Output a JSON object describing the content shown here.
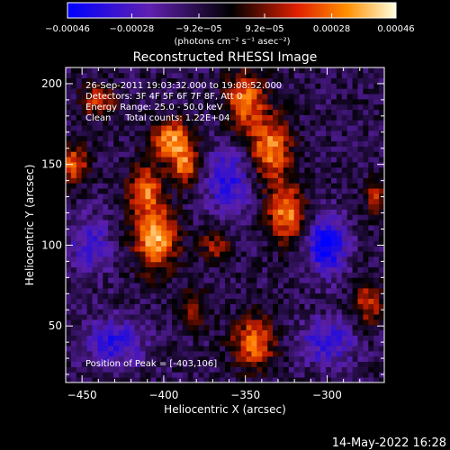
{
  "chart_data": {
    "type": "heatmap",
    "title": "Reconstructed RHESSI Image",
    "xlabel": "Heliocentric X (arcsec)",
    "ylabel": "Heliocentric Y (arcsec)",
    "xlim": [
      -460,
      -265
    ],
    "ylim": [
      15,
      210
    ],
    "x_ticks": [
      -450,
      -400,
      -350,
      -300
    ],
    "x_tick_labels": [
      "−450",
      "−400",
      "−350",
      "−300"
    ],
    "y_ticks": [
      50,
      100,
      150,
      200
    ],
    "y_tick_labels": [
      "50",
      "100",
      "150",
      "200"
    ],
    "colorbar": {
      "range": [
        -0.00046,
        0.00046
      ],
      "ticks": [
        -0.00046,
        -0.00028,
        -9.2e-05,
        9.2e-05,
        0.00028,
        0.00046
      ],
      "tick_labels": [
        "−0.00046",
        "−0.00028",
        "−9.2e−05",
        "9.2e−05",
        "0.00028",
        "0.00046"
      ],
      "unit_text": "(photons cm⁻² s⁻¹ asec⁻²)"
    },
    "annotations": [
      "26-Sep-2011 19:03:32.000 to 19:08:52.000",
      "Detectors: 3F 4F 5F 6F 7F 8F, Att 0",
      "Energy Range: 25.0 - 50.0 keV",
      "Clean     Total counts: 1.22E+04"
    ],
    "peak_label": "Position of Peak = [-403,106]",
    "peak_position": [
      -403,
      106
    ],
    "grid": false,
    "emission_sources": [
      {
        "x": -405,
        "y": 105,
        "amplitude": 1.0,
        "sigma_x": 9,
        "sigma_y": 14
      },
      {
        "x": -395,
        "y": 165,
        "amplitude": 0.9,
        "sigma_x": 9,
        "sigma_y": 9
      },
      {
        "x": -412,
        "y": 135,
        "amplitude": 0.75,
        "sigma_x": 7,
        "sigma_y": 10
      },
      {
        "x": -387,
        "y": 148,
        "amplitude": 0.7,
        "sigma_x": 6,
        "sigma_y": 8
      },
      {
        "x": -350,
        "y": 190,
        "amplitude": 0.8,
        "sigma_x": 8,
        "sigma_y": 12
      },
      {
        "x": -335,
        "y": 160,
        "amplitude": 0.85,
        "sigma_x": 9,
        "sigma_y": 14
      },
      {
        "x": -325,
        "y": 120,
        "amplitude": 0.85,
        "sigma_x": 8,
        "sigma_y": 12
      },
      {
        "x": -345,
        "y": 40,
        "amplitude": 0.8,
        "sigma_x": 9,
        "sigma_y": 11
      },
      {
        "x": -455,
        "y": 150,
        "amplitude": 0.75,
        "sigma_x": 6,
        "sigma_y": 8
      },
      {
        "x": -440,
        "y": 190,
        "amplitude": 0.6,
        "sigma_x": 7,
        "sigma_y": 7
      },
      {
        "x": -275,
        "y": 65,
        "amplitude": 0.6,
        "sigma_x": 6,
        "sigma_y": 10
      },
      {
        "x": -270,
        "y": 130,
        "amplitude": 0.5,
        "sigma_x": 5,
        "sigma_y": 7
      },
      {
        "x": -368,
        "y": 100,
        "amplitude": 0.45,
        "sigma_x": 7,
        "sigma_y": 7
      },
      {
        "x": -382,
        "y": 60,
        "amplitude": 0.45,
        "sigma_x": 7,
        "sigma_y": 8
      },
      {
        "x": -300,
        "y": 100,
        "amplitude": -0.85,
        "sigma_x": 8,
        "sigma_y": 12
      },
      {
        "x": -360,
        "y": 140,
        "amplitude": -0.55,
        "sigma_x": 10,
        "sigma_y": 14
      },
      {
        "x": -430,
        "y": 40,
        "amplitude": -0.55,
        "sigma_x": 12,
        "sigma_y": 10
      },
      {
        "x": -300,
        "y": 40,
        "amplitude": -0.5,
        "sigma_x": 12,
        "sigma_y": 10
      },
      {
        "x": -445,
        "y": 100,
        "amplitude": -0.45,
        "sigma_x": 9,
        "sigma_y": 12
      }
    ],
    "colors": {
      "c0": "#0000ff",
      "c1": "#5a1fa8",
      "c2": "#000000",
      "c3": "#c81e00",
      "c4": "#ff7d00",
      "c5": "#ffffd2"
    }
  },
  "footer": {
    "date": "14-May-2022 16:28"
  }
}
